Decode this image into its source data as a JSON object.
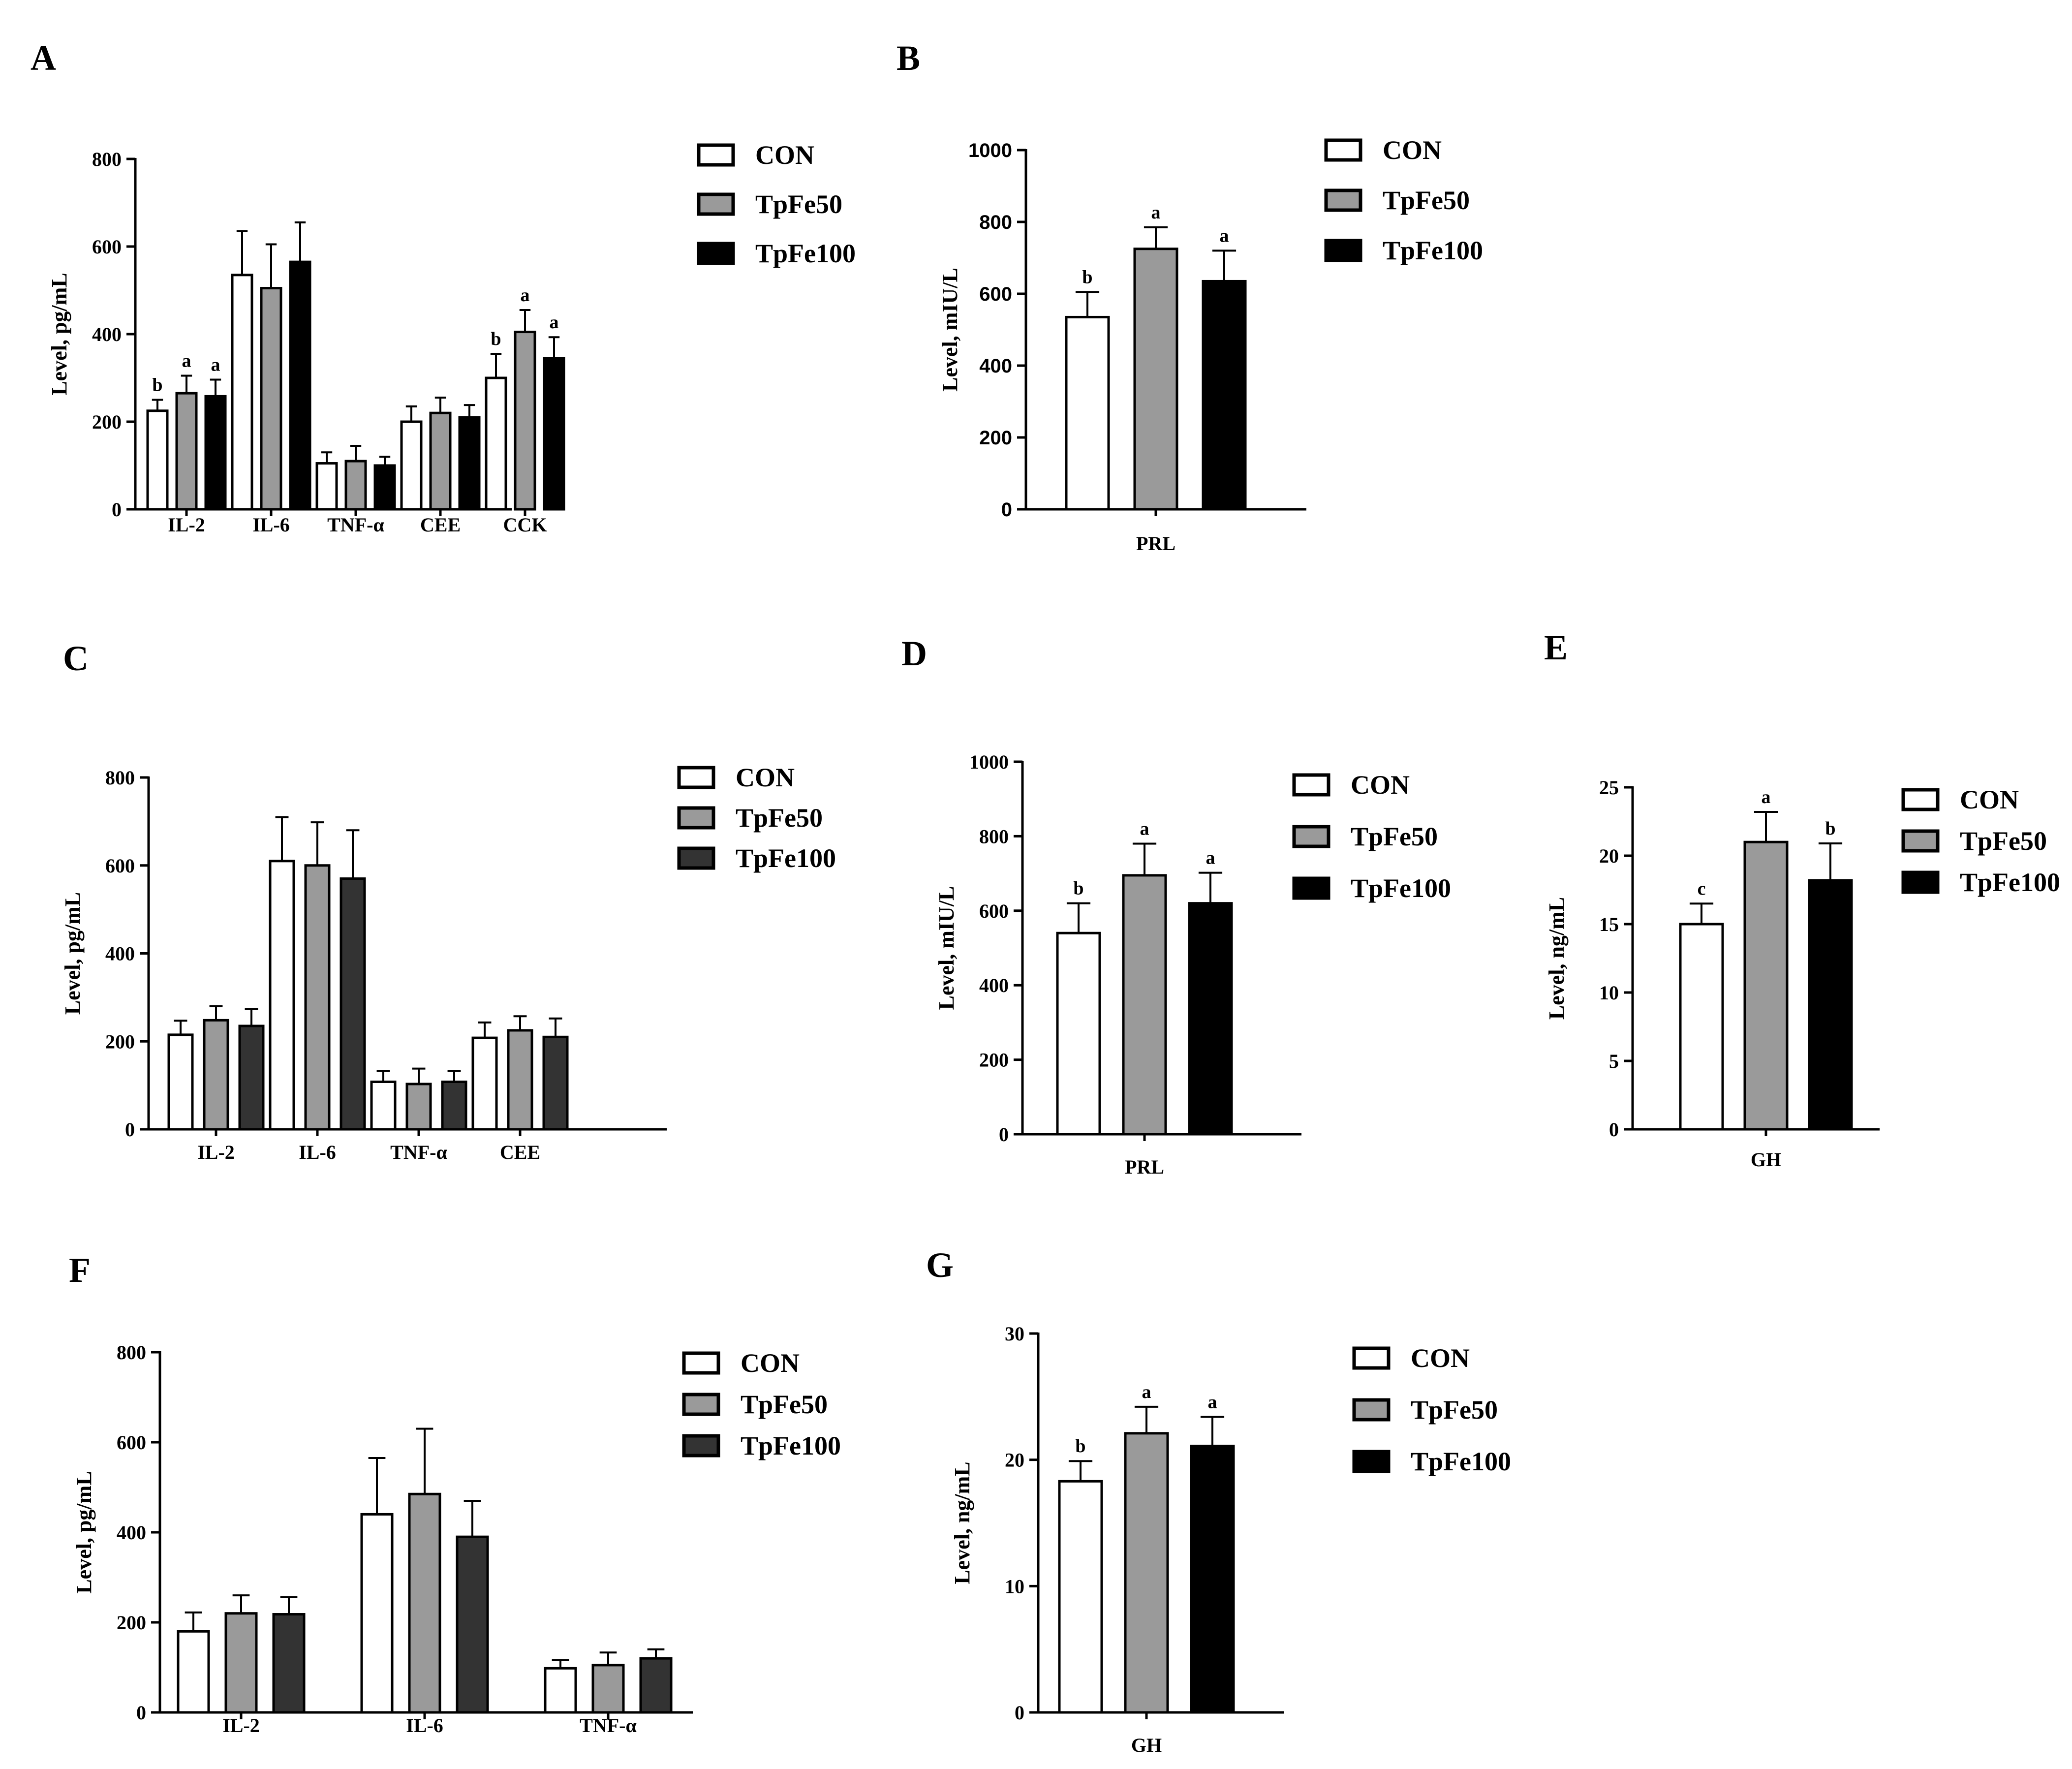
{
  "legend": [
    "CON",
    "TpFe50",
    "TpFe100"
  ],
  "colors": {
    "con": "#ffffff",
    "tpfe50": "#9a9a9a",
    "tpfe100_black": "#000000",
    "tpfe100_dark": "#333333",
    "stroke": "#000000"
  },
  "chart_data": [
    {
      "panel": "A",
      "type": "bar",
      "ylabel": "Level, pg/mL",
      "ylim": [
        0,
        800
      ],
      "yticks": [
        0,
        200,
        400,
        600,
        800
      ],
      "categories": [
        "IL-2",
        "IL-6",
        "TNF-α",
        "CEE",
        "CCK"
      ],
      "series": [
        {
          "name": "CON",
          "values": [
            225,
            535,
            105,
            200,
            300
          ],
          "errors": [
            25,
            100,
            25,
            35,
            55
          ],
          "letters": [
            "b",
            "",
            "",
            "",
            "b"
          ]
        },
        {
          "name": "TpFe50",
          "values": [
            265,
            505,
            110,
            220,
            405
          ],
          "errors": [
            40,
            100,
            35,
            35,
            50
          ],
          "letters": [
            "a",
            "",
            "",
            "",
            "a"
          ]
        },
        {
          "name": "TpFe100",
          "values": [
            258,
            565,
            100,
            210,
            345
          ],
          "errors": [
            38,
            90,
            20,
            28,
            48
          ],
          "letters": [
            "a",
            "",
            "",
            "",
            "a"
          ]
        }
      ]
    },
    {
      "panel": "B",
      "type": "bar",
      "ylabel": "Level, mIU/L",
      "ylim": [
        0,
        1000
      ],
      "yticks": [
        0,
        200,
        400,
        600,
        800,
        1000
      ],
      "categories": [
        "PRL"
      ],
      "series": [
        {
          "name": "CON",
          "values": [
            535
          ],
          "errors": [
            70
          ],
          "letters": [
            "b"
          ]
        },
        {
          "name": "TpFe50",
          "values": [
            725
          ],
          "errors": [
            60
          ],
          "letters": [
            "a"
          ]
        },
        {
          "name": "TpFe100",
          "values": [
            635
          ],
          "errors": [
            85
          ],
          "letters": [
            "a"
          ]
        }
      ]
    },
    {
      "panel": "C",
      "type": "bar",
      "ylabel": "Level, pg/mL",
      "ylim": [
        0,
        800
      ],
      "yticks": [
        0,
        200,
        400,
        600,
        800
      ],
      "categories": [
        "IL-2",
        "IL-6",
        "TNF-α",
        "CEE"
      ],
      "series": [
        {
          "name": "CON",
          "values": [
            215,
            610,
            108,
            208
          ],
          "errors": [
            32,
            100,
            25,
            35
          ],
          "letters": [
            "",
            "",
            "",
            ""
          ]
        },
        {
          "name": "TpFe50",
          "values": [
            248,
            600,
            103,
            225
          ],
          "errors": [
            32,
            98,
            35,
            32
          ],
          "letters": [
            "",
            "",
            "",
            ""
          ]
        },
        {
          "name": "TpFe100",
          "values": [
            235,
            570,
            108,
            210
          ],
          "errors": [
            38,
            110,
            25,
            42
          ],
          "letters": [
            "",
            "",
            "",
            ""
          ]
        }
      ]
    },
    {
      "panel": "D",
      "type": "bar",
      "ylabel": "Level, mIU/L",
      "ylim": [
        0,
        1000
      ],
      "yticks": [
        0,
        200,
        400,
        600,
        800,
        1000
      ],
      "categories": [
        "PRL"
      ],
      "series": [
        {
          "name": "CON",
          "values": [
            540
          ],
          "errors": [
            80
          ],
          "letters": [
            "b"
          ]
        },
        {
          "name": "TpFe50",
          "values": [
            695
          ],
          "errors": [
            85
          ],
          "letters": [
            "a"
          ]
        },
        {
          "name": "TpFe100",
          "values": [
            620
          ],
          "errors": [
            82
          ],
          "letters": [
            "a"
          ]
        }
      ]
    },
    {
      "panel": "E",
      "type": "bar",
      "ylabel": "Level, ng/mL",
      "ylim": [
        0,
        25
      ],
      "yticks": [
        0,
        5,
        10,
        15,
        20,
        25
      ],
      "categories": [
        "GH"
      ],
      "series": [
        {
          "name": "CON",
          "values": [
            15
          ],
          "errors": [
            1.5
          ],
          "letters": [
            "c"
          ]
        },
        {
          "name": "TpFe50",
          "values": [
            21
          ],
          "errors": [
            2.2
          ],
          "letters": [
            "a"
          ]
        },
        {
          "name": "TpFe100",
          "values": [
            18.2
          ],
          "errors": [
            2.7
          ],
          "letters": [
            "b"
          ]
        }
      ]
    },
    {
      "panel": "F",
      "type": "bar",
      "ylabel": "Level, pg/mL",
      "ylim": [
        0,
        800
      ],
      "yticks": [
        0,
        200,
        400,
        600,
        800
      ],
      "categories": [
        "IL-2",
        "IL-6",
        "TNF-α"
      ],
      "series": [
        {
          "name": "CON",
          "values": [
            180,
            440,
            98
          ],
          "errors": [
            42,
            125,
            18
          ],
          "letters": [
            "",
            "",
            ""
          ]
        },
        {
          "name": "TpFe50",
          "values": [
            220,
            485,
            105
          ],
          "errors": [
            40,
            145,
            28
          ],
          "letters": [
            "",
            "",
            ""
          ]
        },
        {
          "name": "TpFe100",
          "values": [
            218,
            390,
            120
          ],
          "errors": [
            38,
            80,
            20
          ],
          "letters": [
            "",
            "",
            ""
          ]
        }
      ]
    },
    {
      "panel": "G",
      "type": "bar",
      "ylabel": "Level, ng/mL",
      "ylim": [
        0,
        30
      ],
      "yticks": [
        0,
        10,
        20,
        30
      ],
      "categories": [
        "GH"
      ],
      "series": [
        {
          "name": "CON",
          "values": [
            18.3
          ],
          "errors": [
            1.6
          ],
          "letters": [
            "b"
          ]
        },
        {
          "name": "TpFe50",
          "values": [
            22.1
          ],
          "errors": [
            2.1
          ],
          "letters": [
            "a"
          ]
        },
        {
          "name": "TpFe100",
          "values": [
            21.1
          ],
          "errors": [
            2.3
          ],
          "letters": [
            "a"
          ]
        }
      ]
    }
  ]
}
